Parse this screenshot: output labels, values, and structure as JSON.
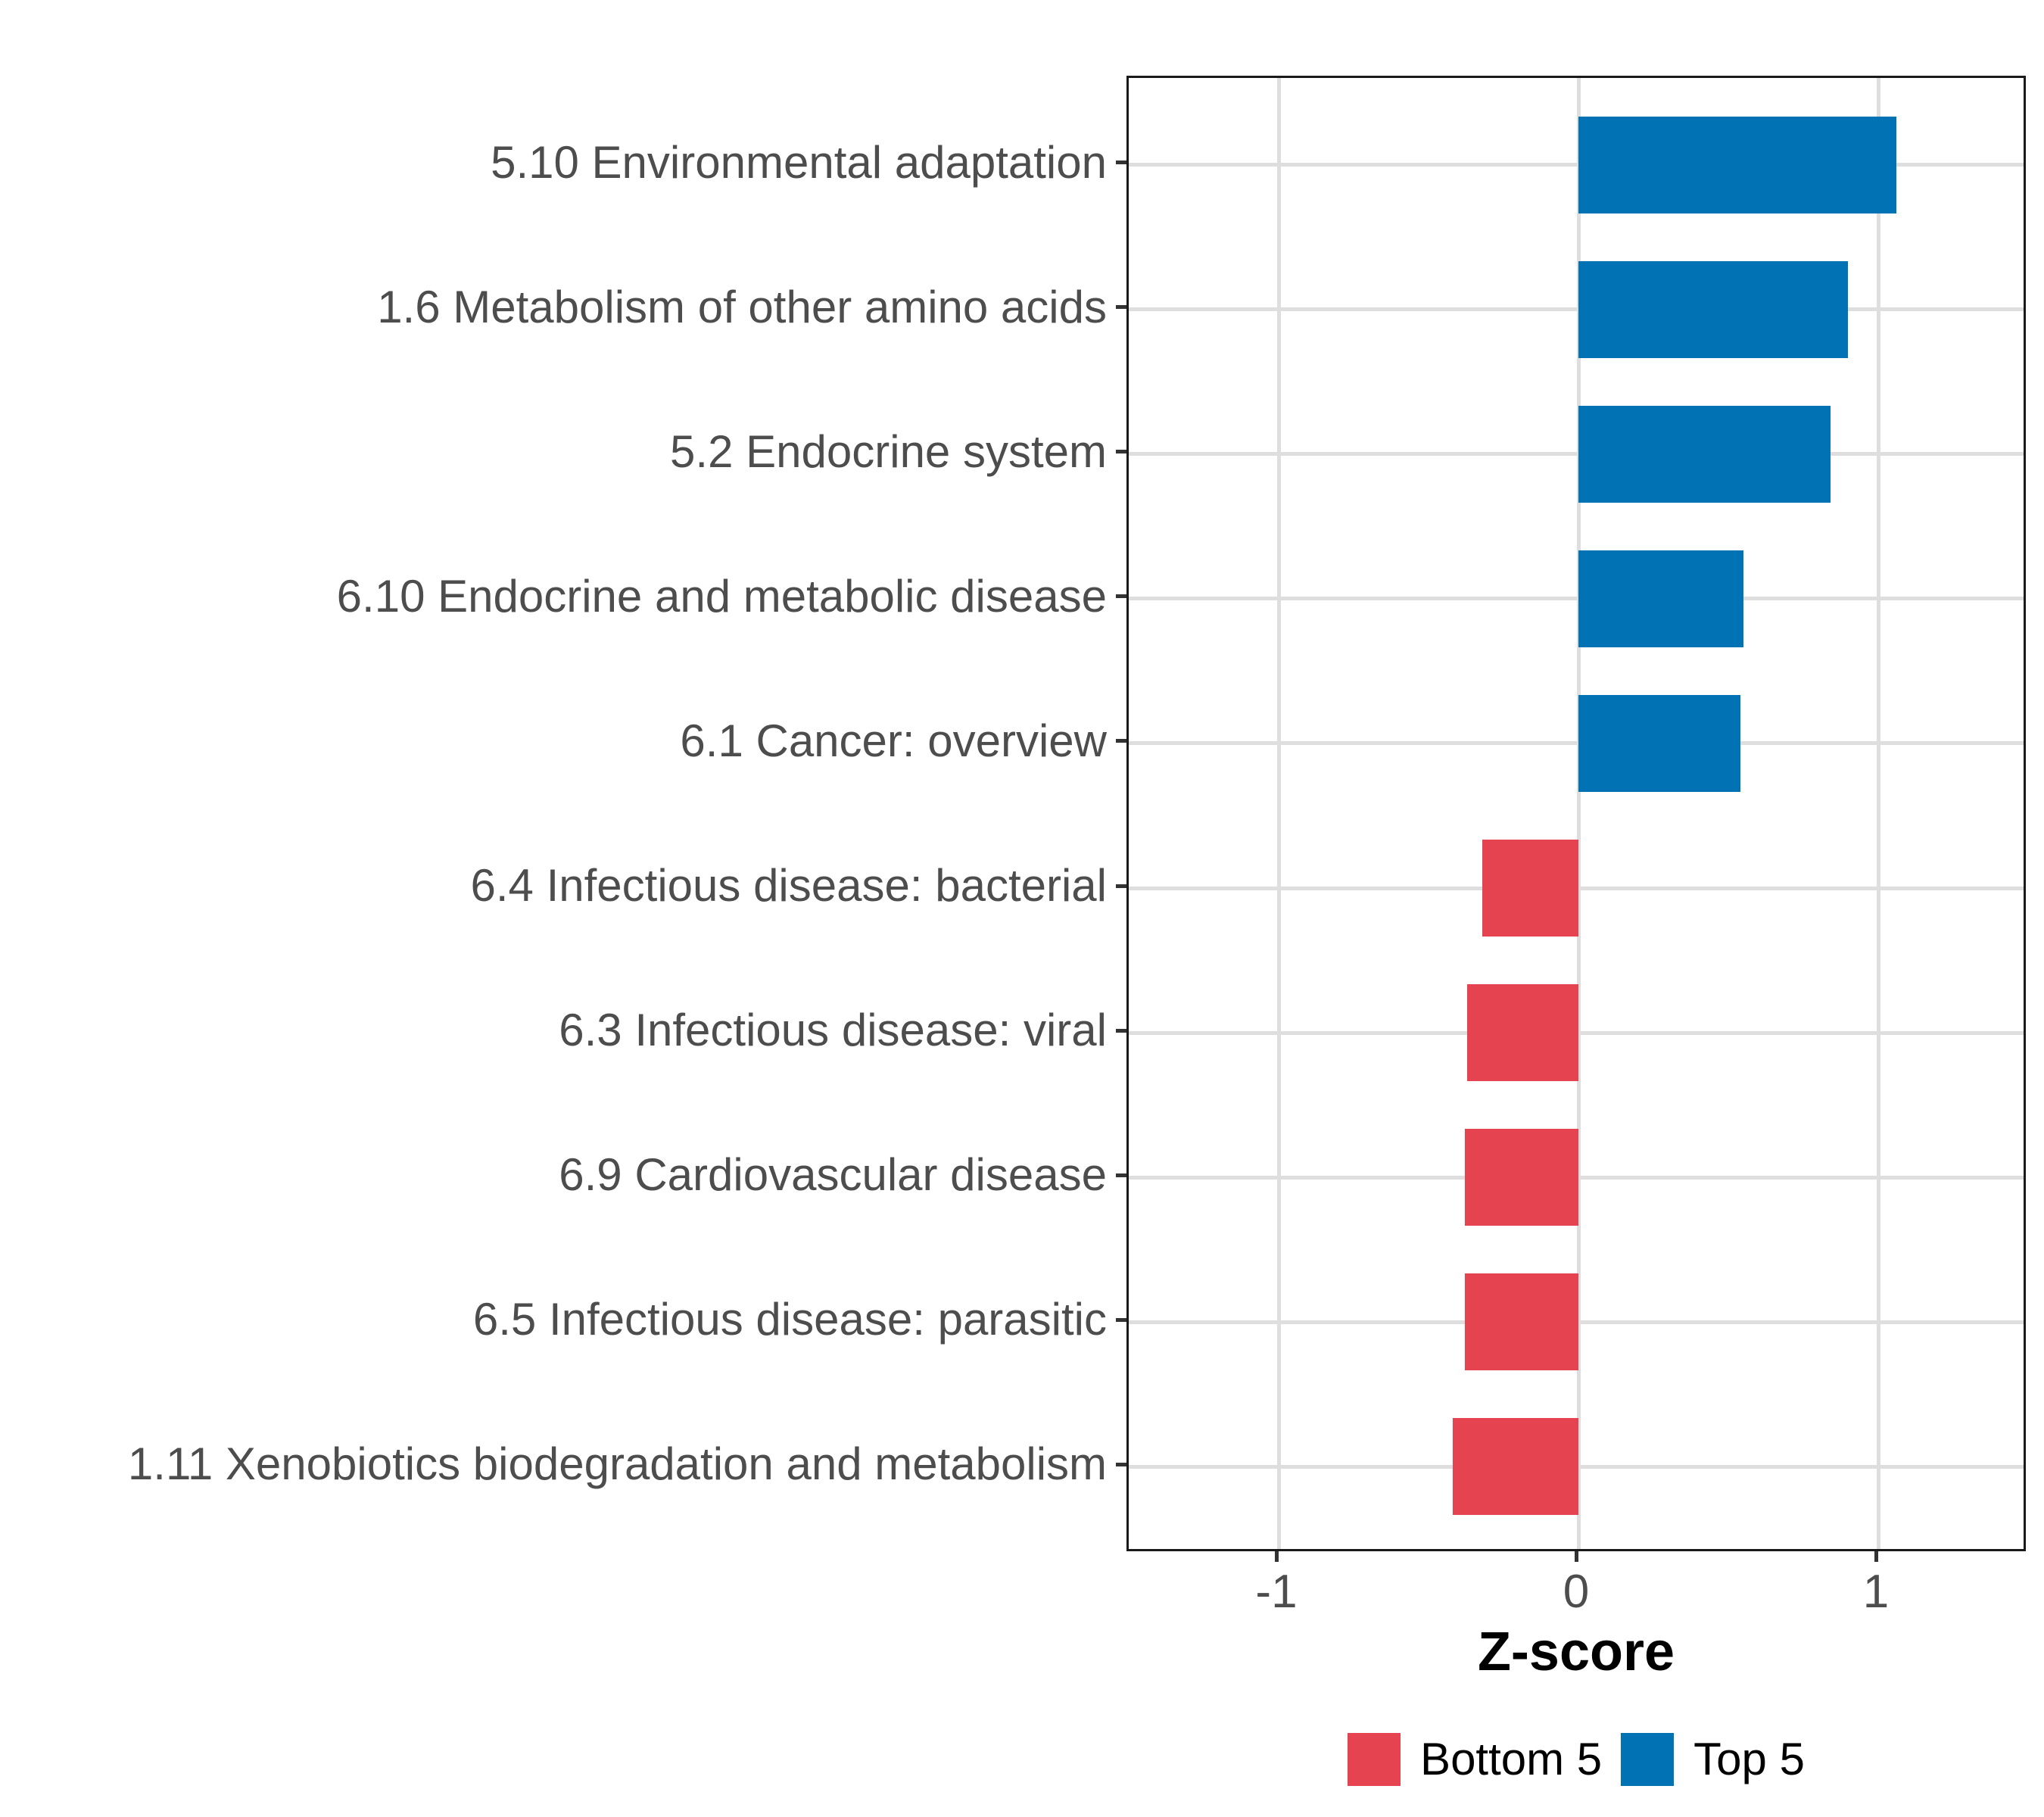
{
  "chart_data": {
    "type": "bar",
    "orientation": "horizontal",
    "title": "",
    "xlabel": "Z-score",
    "xlim": [
      -1.5,
      1.5
    ],
    "xticks": [
      -1,
      0,
      1
    ],
    "xtick_labels": [
      "-1",
      "0",
      "1"
    ],
    "grid": "major-only",
    "panel_border": true,
    "bars": [
      {
        "category": "5.10 Environmental adaptation",
        "value": 1.06,
        "group": "Top 5"
      },
      {
        "category": "1.6 Metabolism of other amino acids",
        "value": 0.9,
        "group": "Top 5"
      },
      {
        "category": "5.2 Endocrine system",
        "value": 0.84,
        "group": "Top 5"
      },
      {
        "category": "6.10 Endocrine and metabolic disease",
        "value": 0.55,
        "group": "Top 5"
      },
      {
        "category": "6.1 Cancer: overview",
        "value": 0.54,
        "group": "Top 5"
      },
      {
        "category": "6.4 Infectious disease: bacterial",
        "value": -0.32,
        "group": "Bottom 5"
      },
      {
        "category": "6.3 Infectious disease: viral",
        "value": -0.37,
        "group": "Bottom 5"
      },
      {
        "category": "6.9 Cardiovascular disease",
        "value": -0.38,
        "group": "Bottom 5"
      },
      {
        "category": "6.5 Infectious disease: parasitic",
        "value": -0.38,
        "group": "Bottom 5"
      },
      {
        "category": "1.11 Xenobiotics biodegradation and metabolism",
        "value": -0.42,
        "group": "Bottom 5"
      }
    ],
    "groups": {
      "Bottom 5": {
        "color": "#E54350"
      },
      "Top 5": {
        "color": "#0173B4"
      }
    },
    "legend": {
      "position": "bottom",
      "entries": [
        "Bottom 5",
        "Top 5"
      ]
    }
  }
}
